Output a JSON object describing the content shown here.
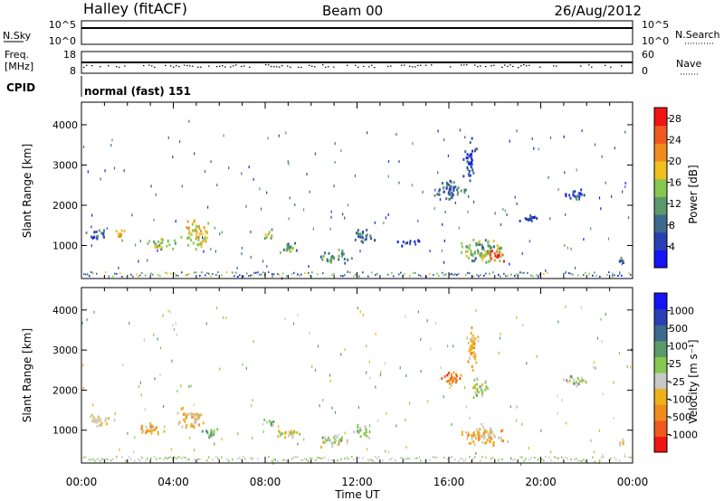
{
  "header": {
    "station": "Halley (fitACF)",
    "beam": "Beam 00",
    "date": "26/Aug/2012"
  },
  "strips": {
    "nsky": {
      "label": "N.Sky",
      "ticks": [
        "10^5",
        "10^0"
      ]
    },
    "nsearch": {
      "label": "N.Search",
      "ticks": [
        "10^5",
        "10^0"
      ]
    },
    "freq": {
      "label_line1": "Freq.",
      "label_line2": "[MHz]",
      "ticks": [
        "18",
        "8"
      ]
    },
    "nave": {
      "label": "Nave",
      "ticks": [
        "60",
        "0"
      ]
    },
    "cpid": {
      "label": "CPID",
      "value": "normal (fast) 151"
    }
  },
  "colors": {
    "power": [
      "#1414f5",
      "#2a3fb4",
      "#3c6a8c",
      "#5a9a6a",
      "#86c850",
      "#f0c020",
      "#f08c1e",
      "#f05a1e",
      "#f01414"
    ],
    "velocity": [
      "#f01414",
      "#f05a1e",
      "#f08c1e",
      "#f0b01e",
      "#c8c8c8",
      "#86c850",
      "#5a9a6a",
      "#3c6a8c",
      "#2a3fb4",
      "#1414f5"
    ]
  },
  "chart_data": [
    {
      "type": "heatmap",
      "panel": "power",
      "ylabel": "Slant Range [km]",
      "yticks": [
        "1000",
        "2000",
        "3000",
        "4000"
      ],
      "ylim": [
        180,
        4560
      ],
      "xlim": [
        0,
        24
      ],
      "colorbar": {
        "label": "Power [dB]",
        "ticks": [
          "4",
          "8",
          "12",
          "16",
          "20",
          "24",
          "28"
        ],
        "range": [
          0,
          30
        ]
      },
      "blobs": [
        {
          "t": 0.7,
          "r": 1300,
          "dt": 0.6,
          "dr": 180,
          "v": 8
        },
        {
          "t": 1.6,
          "r": 1280,
          "dt": 0.35,
          "dr": 180,
          "v": 20
        },
        {
          "t": 3.5,
          "r": 1050,
          "dt": 0.8,
          "dr": 200,
          "v": 14
        },
        {
          "t": 5.0,
          "r": 1300,
          "dt": 0.8,
          "dr": 420,
          "v": 18
        },
        {
          "t": 8.1,
          "r": 1300,
          "dt": 0.3,
          "dr": 150,
          "v": 16
        },
        {
          "t": 9.0,
          "r": 950,
          "dt": 0.7,
          "dr": 180,
          "v": 12
        },
        {
          "t": 11.0,
          "r": 750,
          "dt": 0.9,
          "dr": 200,
          "v": 12
        },
        {
          "t": 12.2,
          "r": 1250,
          "dt": 0.6,
          "dr": 250,
          "v": 8
        },
        {
          "t": 16.0,
          "r": 2400,
          "dt": 0.9,
          "dr": 320,
          "v": 8
        },
        {
          "t": 17.4,
          "r": 900,
          "dt": 1.3,
          "dr": 380,
          "v": 14
        },
        {
          "t": 18.0,
          "r": 780,
          "dt": 0.45,
          "dr": 220,
          "v": 24
        },
        {
          "t": 16.9,
          "r": 3100,
          "dt": 0.35,
          "dr": 650,
          "v": 6
        },
        {
          "t": 21.5,
          "r": 2300,
          "dt": 0.7,
          "dr": 170,
          "v": 6
        },
        {
          "t": 19.5,
          "r": 1700,
          "dt": 0.6,
          "dr": 150,
          "v": 6
        },
        {
          "t": 23.5,
          "r": 700,
          "dt": 0.3,
          "dr": 120,
          "v": 10
        },
        {
          "t": 14.2,
          "r": 1100,
          "dt": 0.6,
          "dr": 120,
          "v": 4
        }
      ]
    },
    {
      "type": "heatmap",
      "panel": "velocity",
      "ylabel": "Slant Range [km]",
      "yticks": [
        "1000",
        "2000",
        "3000",
        "4000"
      ],
      "ylim": [
        180,
        4560
      ],
      "xlim": [
        0,
        24
      ],
      "colorbar": {
        "label": "Velocity [m s⁻¹]",
        "ticks": [
          "1000",
          "500",
          "100",
          "25",
          "-25",
          "-100",
          "-500",
          "-1000"
        ],
        "range": [
          -1000,
          1000
        ]
      },
      "blobs": [
        {
          "t": 0.8,
          "r": 1250,
          "dt": 0.7,
          "dr": 180,
          "v": -150
        },
        {
          "t": 3.0,
          "r": 1050,
          "dt": 0.9,
          "dr": 200,
          "v": -300
        },
        {
          "t": 4.7,
          "r": 1300,
          "dt": 0.8,
          "dr": 380,
          "v": -250
        },
        {
          "t": 5.5,
          "r": 950,
          "dt": 0.5,
          "dr": 180,
          "v": 200
        },
        {
          "t": 8.2,
          "r": 1200,
          "dt": 0.4,
          "dr": 150,
          "v": 100
        },
        {
          "t": 9.0,
          "r": 950,
          "dt": 0.7,
          "dr": 180,
          "v": -60
        },
        {
          "t": 11.0,
          "r": 750,
          "dt": 0.9,
          "dr": 200,
          "v": 0
        },
        {
          "t": 12.2,
          "r": 1000,
          "dt": 0.5,
          "dr": 250,
          "v": 60
        },
        {
          "t": 16.1,
          "r": 2350,
          "dt": 0.6,
          "dr": 280,
          "v": -600
        },
        {
          "t": 17.3,
          "r": 2100,
          "dt": 0.6,
          "dr": 300,
          "v": 0
        },
        {
          "t": 17.5,
          "r": 900,
          "dt": 1.3,
          "dr": 380,
          "v": -250
        },
        {
          "t": 17.0,
          "r": 3100,
          "dt": 0.35,
          "dr": 650,
          "v": -300
        },
        {
          "t": 21.5,
          "r": 2250,
          "dt": 0.7,
          "dr": 170,
          "v": 0
        },
        {
          "t": 23.5,
          "r": 700,
          "dt": 0.3,
          "dr": 120,
          "v": -200
        }
      ]
    }
  ],
  "xaxis": {
    "label": "Time UT",
    "ticks": [
      "00:00",
      "04:00",
      "08:00",
      "12:00",
      "16:00",
      "20:00",
      "00:00"
    ]
  }
}
